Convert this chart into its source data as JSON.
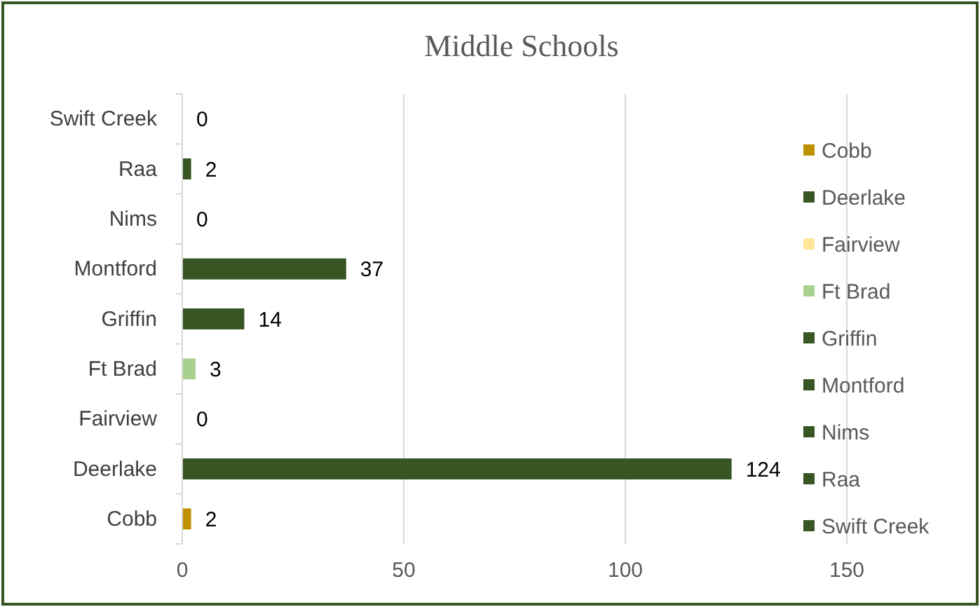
{
  "chart_data": {
    "type": "bar",
    "orientation": "horizontal",
    "stacked": true,
    "title": "Middle Schools",
    "categories": [
      "Swift Creek",
      "Raa",
      "Nims",
      "Montford",
      "Griffin",
      "Ft Brad",
      "Fairview",
      "Deerlake",
      "Cobb"
    ],
    "series": [
      {
        "name": "Cobb",
        "color": "#bf9000",
        "values": [
          null,
          null,
          null,
          null,
          null,
          null,
          null,
          null,
          2
        ]
      },
      {
        "name": "Deerlake",
        "color": "#375623",
        "values": [
          null,
          null,
          null,
          null,
          null,
          null,
          null,
          124,
          null
        ]
      },
      {
        "name": "Fairview",
        "color": "#ffe699",
        "values": [
          null,
          null,
          null,
          null,
          null,
          null,
          0,
          null,
          null
        ]
      },
      {
        "name": "Ft Brad",
        "color": "#a9d18e",
        "values": [
          null,
          null,
          null,
          null,
          null,
          3,
          null,
          null,
          null
        ]
      },
      {
        "name": "Griffin",
        "color": "#375623",
        "values": [
          null,
          null,
          null,
          null,
          14,
          null,
          null,
          null,
          null
        ]
      },
      {
        "name": "Montford",
        "color": "#375623",
        "values": [
          null,
          null,
          null,
          37,
          null,
          null,
          null,
          null,
          null
        ]
      },
      {
        "name": "Nims",
        "color": "#375623",
        "values": [
          null,
          null,
          0,
          null,
          null,
          null,
          null,
          null,
          null
        ]
      },
      {
        "name": "Raa",
        "color": "#375623",
        "values": [
          null,
          2,
          null,
          null,
          null,
          null,
          null,
          null,
          null
        ]
      },
      {
        "name": "Swift Creek",
        "color": "#375623",
        "values": [
          0,
          null,
          null,
          null,
          null,
          null,
          null,
          null,
          null
        ]
      }
    ],
    "xlim": [
      0,
      150
    ],
    "xticks": [
      0,
      50,
      100,
      150
    ],
    "grid": "x",
    "data_labels": true,
    "legend": "right"
  }
}
